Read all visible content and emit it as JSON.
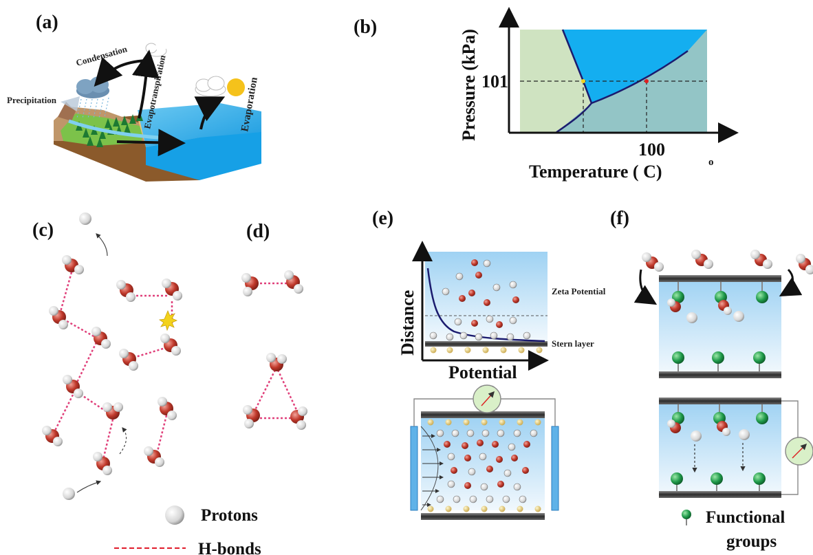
{
  "panels": {
    "a": {
      "label": "(a)",
      "condensation": "Condensation",
      "evapotranspiration": "Evapotranspiration",
      "evaporation": "Evaporation",
      "precipitation": "Precipitation"
    },
    "b": {
      "label": "(b)",
      "ylabel": "Pressure (kPa)",
      "xlabel": "Temperature ( C)",
      "degree": "o",
      "ytick": "101",
      "xtick": "100"
    },
    "c": {
      "label": "(c)"
    },
    "d": {
      "label": "(d)"
    },
    "e": {
      "label": "(e)",
      "ylabel": "Distance",
      "xlabel": "Potential",
      "zeta": "Zeta Potential",
      "stern": "Stern layer"
    },
    "f": {
      "label": "(f)"
    }
  },
  "legend": {
    "protons": "Protons",
    "hbonds": "H-bonds",
    "functional1": "Functional",
    "functional2": "groups"
  },
  "colors": {
    "oxygen": "#c0392b",
    "water": "#1aaeea",
    "green_phase": "#cfe3c1",
    "gas_phase": "#93c5c6",
    "bond": "#e0407a",
    "functional": "#1f9a4a"
  }
}
